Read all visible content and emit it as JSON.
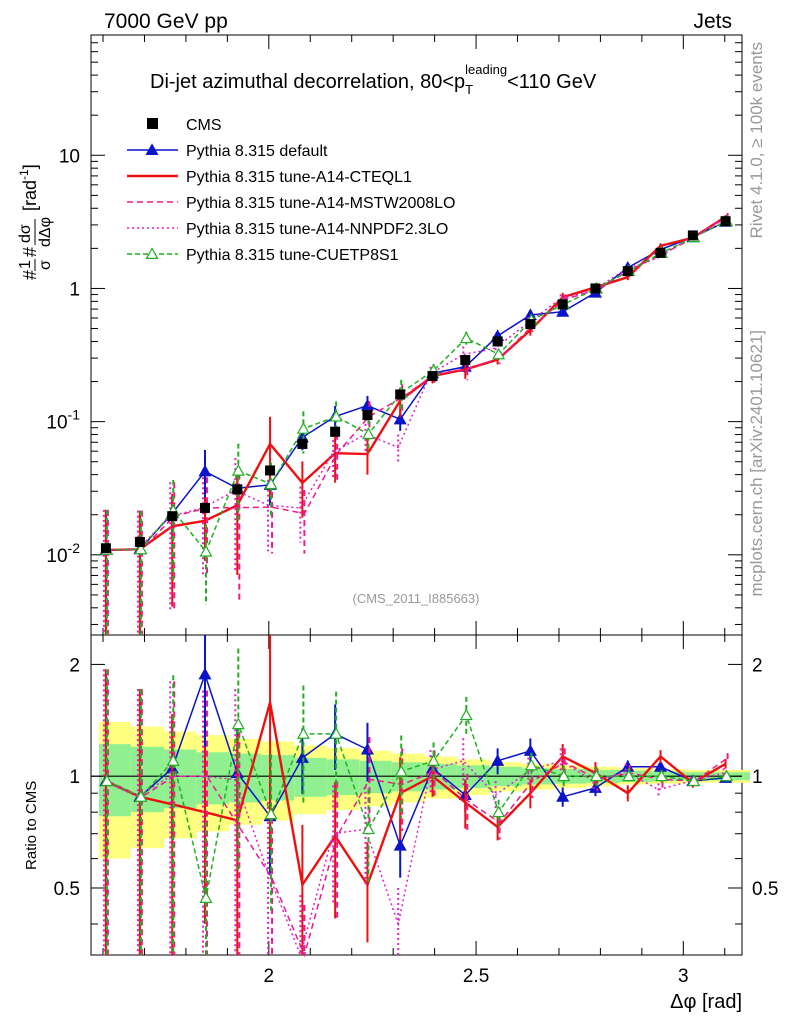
{
  "header": {
    "left": "7000 GeV pp",
    "right": "Jets"
  },
  "side_labels": {
    "rivet": "Rivet 4.1.0, ≥ 100k events",
    "mcplots": "mcplots.cern.ch [arXiv:2401.10621]"
  },
  "chart_data": {
    "type": "line",
    "title": "Di-jet azimuthal decorrelation, 80<p_T^leading<110 GeV",
    "title_parts": {
      "pre": "Di-jet azimuthal decorrelation, 80<p",
      "sub": "T",
      "sup": "leading",
      "post": "<110 GeV"
    },
    "analysis_label": "(CMS_2011_I885663)",
    "xlabel": "Δφ [rad]",
    "ylabel": "#1/σ #dσ/dΔφ [rad⁻¹]",
    "ylabel_parts": {
      "one": "1",
      "sigma": "σ",
      "dsigma": "dσ",
      "dphi": "dΔφ",
      "unit": "[rad",
      "unit_sup": "-1",
      "unit_close": "]"
    },
    "ratio_ylabel": "Ratio to CMS",
    "xlim": [
      1.571,
      3.1416
    ],
    "ylim": [
      0.0025,
      80
    ],
    "yscale": "log",
    "ratio_ylim": [
      0.33,
      2.4
    ],
    "x_ticks": [
      "2",
      "2.5",
      "3"
    ],
    "y_ticks": [
      "10^-2",
      "10^-1",
      "1",
      "10"
    ],
    "ratio_y_ticks": [
      "0.5",
      "1",
      "2"
    ],
    "x": [
      1.607,
      1.689,
      1.767,
      1.846,
      1.924,
      2.003,
      2.081,
      2.16,
      2.238,
      2.317,
      2.395,
      2.474,
      2.552,
      2.631,
      2.709,
      2.788,
      2.866,
      2.945,
      3.023,
      3.102
    ],
    "cms": {
      "values": [
        0.0112,
        0.0125,
        0.0195,
        0.0225,
        0.031,
        0.043,
        0.068,
        0.084,
        0.112,
        0.16,
        0.22,
        0.29,
        0.4,
        0.54,
        0.76,
        1.0,
        1.35,
        1.85,
        2.5,
        3.2
      ],
      "band_inner": [
        0.22,
        0.2,
        0.18,
        0.16,
        0.15,
        0.14,
        0.12,
        0.11,
        0.1,
        0.09,
        0.08,
        0.07,
        0.06,
        0.05,
        0.045,
        0.04,
        0.035,
        0.03,
        0.025,
        0.025
      ],
      "band_outer": [
        0.4,
        0.36,
        0.32,
        0.29,
        0.26,
        0.24,
        0.21,
        0.19,
        0.17,
        0.15,
        0.13,
        0.11,
        0.09,
        0.08,
        0.07,
        0.06,
        0.05,
        0.045,
        0.04,
        0.04
      ]
    },
    "series": [
      {
        "name": "Pythia 8.315 default",
        "color": "#0a14c8",
        "dash": "",
        "marker": "triangle-filled",
        "ratio": [
          0.97,
          0.88,
          1.05,
          1.88,
          1.02,
          0.78,
          1.12,
          1.3,
          1.18,
          0.65,
          1.05,
          0.89,
          1.1,
          1.17,
          0.88,
          0.93,
          1.06,
          1.06,
          0.97,
          0.99
        ],
        "err": [
          1.0,
          0.85,
          0.35,
          0.45,
          0.35,
          0.3,
          0.2,
          0.2,
          0.18,
          0.18,
          0.08,
          0.1,
          0.08,
          0.08,
          0.06,
          0.05,
          0.04,
          0.04,
          0.03,
          0.03
        ]
      },
      {
        "name": "Pythia 8.315 tune-A14-CTEQL1",
        "color": "#ee1010",
        "dash": "",
        "marker": "none",
        "ratio": [
          0.97,
          0.88,
          0.84,
          0.8,
          0.76,
          1.58,
          0.51,
          0.69,
          0.51,
          0.9,
          1.0,
          0.85,
          0.73,
          0.9,
          1.13,
          1.02,
          0.9,
          1.13,
          0.96,
          1.08
        ],
        "err": [
          1.0,
          0.95,
          0.75,
          0.5,
          0.7,
          0.6,
          0.45,
          0.4,
          0.3,
          0.25,
          0.12,
          0.15,
          0.08,
          0.09,
          0.08,
          0.07,
          0.05,
          0.04,
          0.03,
          0.03
        ]
      },
      {
        "name": "Pythia 8.315 tune-A14-MSTW2008LO",
        "color": "#ee1a8c",
        "dash": "6,4",
        "marker": "none",
        "ratio": [
          0.97,
          0.88,
          1.0,
          1.0,
          0.73,
          0.53,
          0.3,
          0.69,
          0.98,
          0.95,
          1.03,
          0.86,
          0.75,
          0.97,
          1.09,
          0.98,
          1.02,
          0.98,
          0.97,
          1.12
        ],
        "err": [
          1.0,
          0.95,
          0.8,
          0.7,
          0.8,
          0.55,
          0.5,
          0.4,
          0.3,
          0.25,
          0.14,
          0.18,
          0.1,
          0.1,
          0.09,
          0.07,
          0.05,
          0.05,
          0.03,
          0.03
        ]
      },
      {
        "name": "Pythia 8.315 tune-A14-NNPDF2.3LO",
        "color": "#e020c8",
        "dash": "2,3",
        "marker": "none",
        "ratio": [
          0.97,
          0.88,
          1.0,
          1.0,
          0.98,
          0.55,
          0.33,
          0.7,
          0.72,
          0.4,
          1.04,
          1.1,
          0.89,
          1.03,
          1.1,
          0.97,
          1.03,
          0.92,
          0.97,
          1.02
        ],
        "err": [
          1.0,
          0.95,
          0.8,
          0.7,
          0.75,
          0.55,
          0.45,
          0.35,
          0.3,
          0.25,
          0.13,
          0.15,
          0.09,
          0.09,
          0.08,
          0.06,
          0.05,
          0.04,
          0.03,
          0.03
        ]
      },
      {
        "name": "Pythia 8.315 tune-CUETP8S1",
        "color": "#20b020",
        "dash": "5,3",
        "marker": "triangle-open",
        "ratio": [
          0.97,
          0.88,
          1.1,
          0.47,
          1.38,
          0.79,
          1.3,
          1.3,
          0.72,
          1.03,
          1.1,
          1.46,
          0.8,
          1.07,
          1.0,
          1.0,
          1.0,
          1.0,
          0.97,
          1.0
        ],
        "err": [
          1.0,
          0.95,
          0.7,
          0.6,
          0.6,
          0.45,
          0.35,
          0.3,
          0.28,
          0.25,
          0.12,
          0.12,
          0.08,
          0.08,
          0.07,
          0.06,
          0.05,
          0.04,
          0.03,
          0.03
        ]
      }
    ]
  }
}
